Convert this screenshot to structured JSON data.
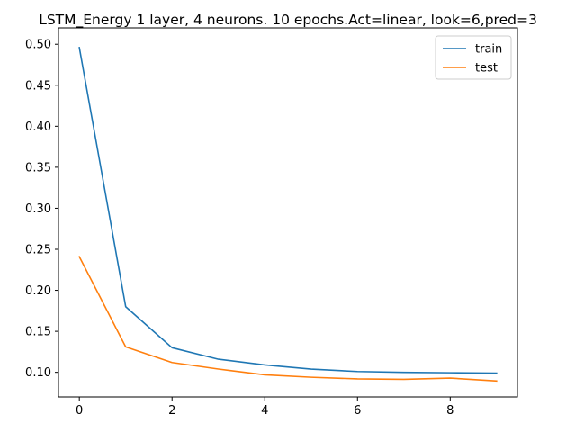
{
  "chart_data": {
    "type": "line",
    "title": "LSTM_Energy 1 layer, 4 neurons. 10 epochs.Act=linear, look=6,pred=3",
    "xlabel": "",
    "ylabel": "",
    "x": [
      0,
      1,
      2,
      3,
      4,
      5,
      6,
      7,
      8,
      9
    ],
    "xlim": [
      -0.45,
      9.45
    ],
    "ylim": [
      0.07,
      0.52
    ],
    "xticks": [
      0,
      2,
      4,
      6,
      8
    ],
    "yticks": [
      0.1,
      0.15,
      0.2,
      0.25,
      0.3,
      0.35,
      0.4,
      0.45,
      0.5
    ],
    "ytick_labels": [
      "0.10",
      "0.15",
      "0.20",
      "0.25",
      "0.30",
      "0.35",
      "0.40",
      "0.45",
      "0.50"
    ],
    "grid": false,
    "legend_position": "top-right",
    "series": [
      {
        "name": "train",
        "color": "#1f77b4",
        "values": [
          0.496,
          0.18,
          0.13,
          0.116,
          0.109,
          0.104,
          0.101,
          0.1,
          0.0995,
          0.099
        ]
      },
      {
        "name": "test",
        "color": "#ff7f0e",
        "values": [
          0.241,
          0.131,
          0.112,
          0.104,
          0.097,
          0.094,
          0.092,
          0.0915,
          0.093,
          0.0895
        ]
      }
    ]
  }
}
